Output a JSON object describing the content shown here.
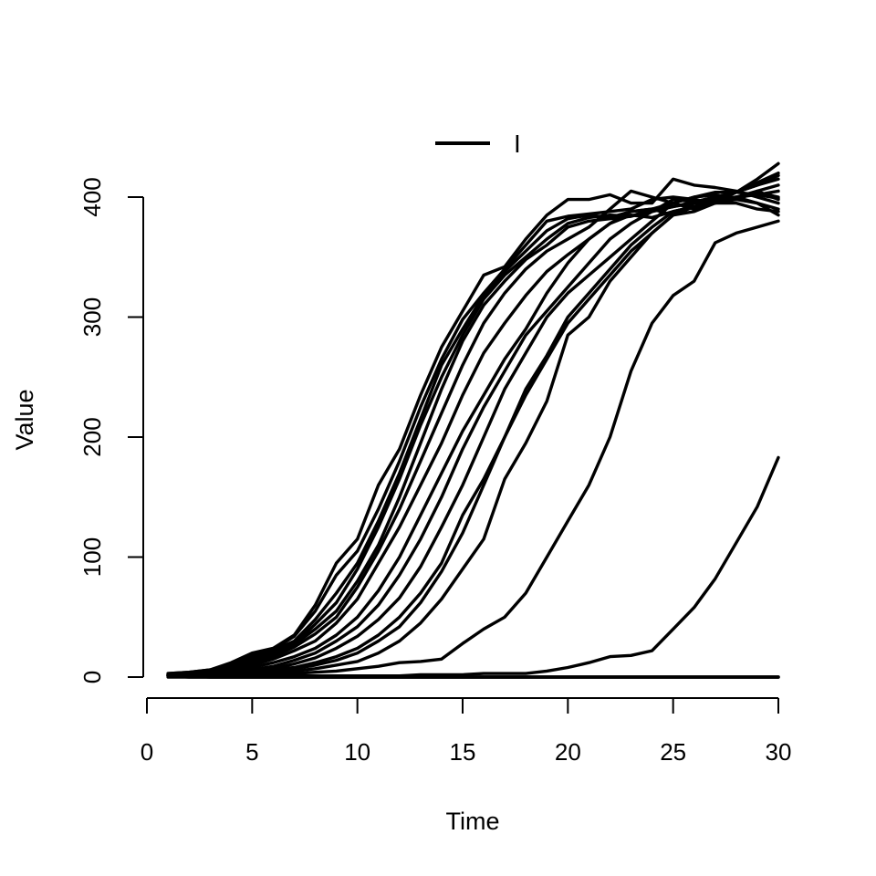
{
  "chart_data": {
    "type": "line",
    "xlabel": "Time",
    "ylabel": "Value",
    "xlim": [
      1,
      30
    ],
    "ylim": [
      0,
      420
    ],
    "x_ticks": [
      0,
      5,
      10,
      15,
      20,
      25,
      30
    ],
    "y_ticks": [
      0,
      100,
      200,
      300,
      400
    ],
    "legend": {
      "position": "top",
      "entries": [
        "I"
      ]
    },
    "color": "#000000",
    "x": [
      1,
      2,
      3,
      4,
      5,
      6,
      7,
      8,
      9,
      10,
      11,
      12,
      13,
      14,
      15,
      16,
      17,
      18,
      19,
      20,
      21,
      22,
      23,
      24,
      25,
      26,
      27,
      28,
      29,
      30
    ],
    "series": [
      {
        "values": [
          3,
          4,
          6,
          12,
          20,
          24,
          35,
          60,
          95,
          115,
          160,
          190,
          235,
          275,
          305,
          335,
          342,
          365,
          385,
          398,
          398,
          402,
          395,
          395,
          415,
          410,
          408,
          405,
          400,
          395
        ]
      },
      {
        "values": [
          3,
          4,
          6,
          11,
          18,
          23,
          34,
          55,
          85,
          105,
          140,
          180,
          225,
          265,
          298,
          320,
          340,
          360,
          380,
          384,
          386,
          388,
          390,
          398,
          400,
          398,
          395,
          395,
          390,
          388
        ]
      },
      {
        "values": [
          2,
          3,
          5,
          10,
          16,
          22,
          30,
          48,
          70,
          95,
          130,
          170,
          215,
          260,
          290,
          318,
          338,
          355,
          372,
          382,
          385,
          383,
          388,
          390,
          395,
          400,
          402,
          398,
          395,
          385
        ]
      },
      {
        "values": [
          2,
          3,
          5,
          9,
          15,
          20,
          28,
          44,
          62,
          90,
          125,
          165,
          210,
          250,
          285,
          315,
          335,
          350,
          365,
          378,
          383,
          385,
          384,
          388,
          398,
          396,
          400,
          404,
          410,
          415
        ]
      },
      {
        "values": [
          2,
          3,
          4,
          8,
          14,
          19,
          27,
          40,
          55,
          80,
          110,
          150,
          195,
          240,
          280,
          310,
          330,
          348,
          360,
          375,
          380,
          382,
          384,
          390,
          385,
          388,
          395,
          398,
          405,
          410
        ]
      },
      {
        "values": [
          2,
          3,
          4,
          7,
          12,
          17,
          25,
          36,
          50,
          75,
          105,
          140,
          180,
          220,
          260,
          295,
          320,
          340,
          355,
          365,
          375,
          390,
          405,
          400,
          395,
          390,
          396,
          404,
          415,
          428
        ]
      },
      {
        "values": [
          2,
          2,
          4,
          6,
          10,
          15,
          22,
          30,
          45,
          65,
          95,
          125,
          160,
          195,
          235,
          270,
          295,
          318,
          338,
          352,
          365,
          378,
          385,
          383,
          388,
          392,
          400,
          404,
          412,
          420
        ]
      },
      {
        "values": [
          2,
          2,
          3,
          5,
          8,
          12,
          17,
          24,
          35,
          50,
          72,
          100,
          135,
          170,
          205,
          235,
          265,
          290,
          320,
          345,
          365,
          378,
          388,
          390,
          392,
          395,
          398,
          400,
          402,
          405
        ]
      },
      {
        "values": [
          1,
          2,
          3,
          4,
          6,
          9,
          14,
          20,
          30,
          42,
          60,
          85,
          115,
          150,
          190,
          225,
          255,
          285,
          305,
          325,
          345,
          365,
          378,
          388,
          392,
          396,
          400,
          398,
          404,
          400
        ]
      },
      {
        "values": [
          1,
          2,
          2,
          3,
          5,
          7,
          11,
          16,
          24,
          34,
          48,
          66,
          92,
          125,
          160,
          200,
          240,
          270,
          300,
          320,
          335,
          350,
          365,
          380,
          395,
          400,
          404,
          404,
          402,
          399
        ]
      },
      {
        "values": [
          1,
          1,
          2,
          3,
          4,
          6,
          8,
          12,
          17,
          24,
          35,
          50,
          70,
          95,
          135,
          165,
          200,
          240,
          268,
          300,
          320,
          340,
          360,
          375,
          388,
          392,
          398,
          404,
          410,
          418
        ]
      },
      {
        "values": [
          1,
          1,
          2,
          2,
          3,
          5,
          7,
          10,
          14,
          20,
          30,
          42,
          62,
          88,
          120,
          160,
          200,
          235,
          265,
          295,
          315,
          335,
          355,
          370,
          385,
          392,
          395,
          400,
          405,
          398
        ]
      },
      {
        "values": [
          1,
          1,
          1,
          2,
          2,
          3,
          5,
          7,
          10,
          13,
          20,
          30,
          45,
          65,
          90,
          115,
          165,
          195,
          230,
          285,
          300,
          330,
          350,
          370,
          385,
          395,
          398,
          400,
          395,
          390
        ]
      },
      {
        "values": [
          1,
          1,
          1,
          1,
          2,
          2,
          3,
          4,
          5,
          7,
          9,
          12,
          13,
          15,
          28,
          40,
          50,
          70,
          100,
          130,
          160,
          200,
          255,
          295,
          318,
          330,
          362,
          370,
          375,
          380
        ]
      },
      {
        "values": [
          1,
          1,
          1,
          1,
          1,
          1,
          1,
          1,
          1,
          1,
          1,
          1,
          2,
          2,
          2,
          3,
          3,
          3,
          5,
          8,
          12,
          17,
          18,
          22,
          40,
          58,
          82,
          112,
          142,
          183
        ]
      },
      {
        "values": [
          0,
          0,
          0,
          0,
          0,
          0,
          0,
          0,
          0,
          0,
          0,
          0,
          0,
          0,
          0,
          0,
          0,
          0,
          0,
          0,
          0,
          0,
          0,
          0,
          0,
          0,
          0,
          0,
          0,
          0
        ]
      },
      {
        "values": [
          1,
          0,
          0,
          0,
          0,
          0,
          0,
          0,
          0,
          0,
          0,
          0,
          0,
          0,
          0,
          0,
          0,
          0,
          0,
          0,
          0,
          0,
          0,
          0,
          0,
          0,
          0,
          0,
          0,
          0
        ]
      },
      {
        "values": [
          2,
          1,
          0,
          0,
          0,
          0,
          0,
          0,
          0,
          0,
          0,
          0,
          0,
          0,
          0,
          0,
          0,
          0,
          0,
          0,
          0,
          0,
          0,
          0,
          0,
          0,
          0,
          0,
          0,
          0
        ]
      }
    ]
  }
}
